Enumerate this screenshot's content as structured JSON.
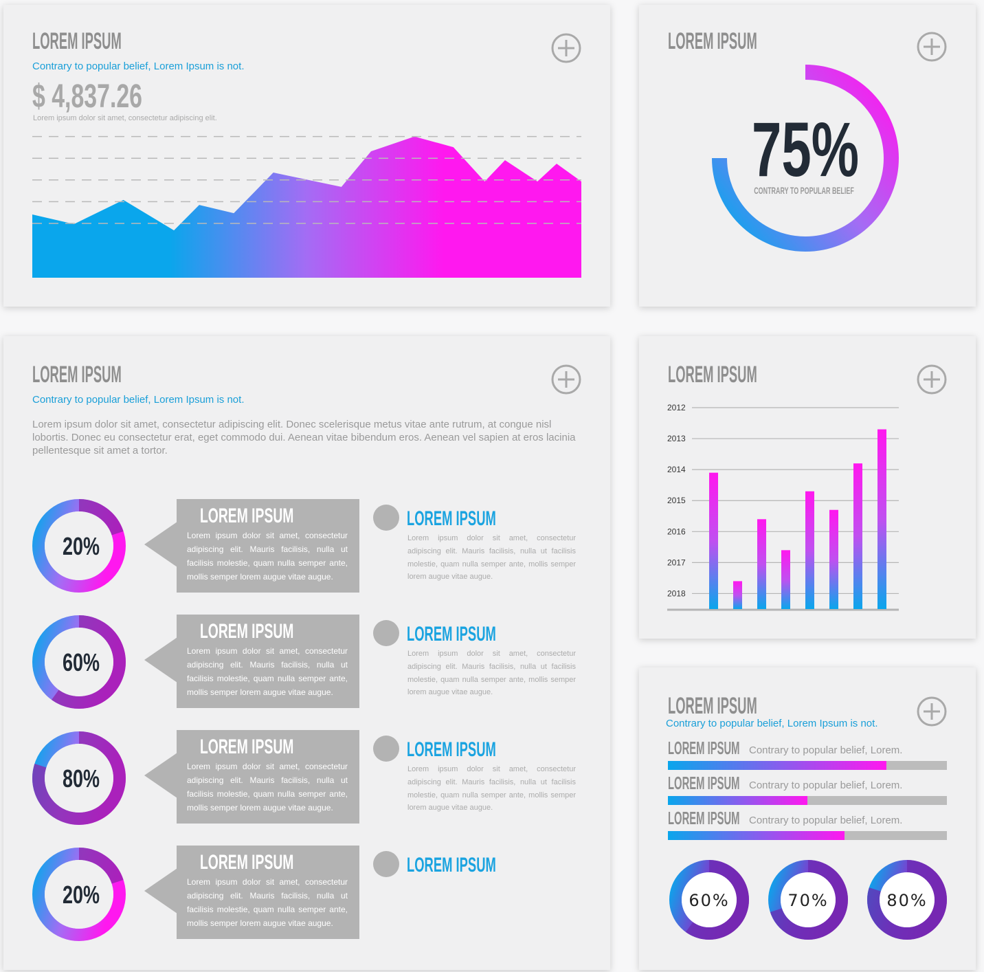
{
  "chart_data": [
    {
      "type": "area",
      "title": "LOREM IPSUM",
      "subtitle": "Contrary to popular belief, Lorem Ipsum is not.",
      "headline": "$ 4,837.26",
      "note": "Lorem ipsum dolor sit amet, consectetur adipiscing elit.",
      "x": [
        0,
        7.6,
        16.6,
        25.8,
        30.4,
        36.7,
        43.9,
        56.3,
        61.7,
        69.6,
        76.7,
        82.4,
        86.1,
        92,
        95.5,
        100
      ],
      "values": [
        29.1,
        24.7,
        35.8,
        21.8,
        33.5,
        29.7,
        48.4,
        41.8,
        58.2,
        65,
        60.1,
        44.3,
        54.1,
        44.3,
        52.5,
        44.3
      ],
      "xlim": [
        0,
        100
      ],
      "ylim": [
        0,
        65
      ],
      "yticks": [
        25,
        35,
        45,
        55,
        65
      ],
      "grid": true,
      "gradient": [
        "#0aa6ec",
        "#0aa6ec",
        "#a46cf4",
        "#ff18ef",
        "#ff18ef"
      ]
    },
    {
      "type": "gauge",
      "title": "LOREM IPSUM",
      "value": 75,
      "value_label": "75%",
      "label": "CONTRARY TO POPULAR BELIEF",
      "range": [
        0,
        100
      ],
      "gradient": [
        "#0aa6ec",
        "#a46cf4",
        "#ff18ef"
      ]
    },
    {
      "type": "bar",
      "title": "LOREM IPSUM",
      "categories": [
        null,
        null,
        null,
        null,
        null,
        null,
        null,
        null
      ],
      "values": [
        2014.1,
        2017.6,
        2015.6,
        2016.6,
        2014.7,
        2015.3,
        2013.8,
        2012.7
      ],
      "ylim": [
        2018.5,
        2012
      ],
      "yticks": [
        2012,
        2013,
        2014,
        2015,
        2016,
        2017,
        2018
      ],
      "grid": true,
      "gradient": [
        "#0aa6ec",
        "#c050f0",
        "#ff18ef"
      ]
    },
    {
      "type": "progress",
      "title": "LOREM IPSUM",
      "subtitle": "Contrary to popular belief, Lorem Ipsum is not.",
      "categories": [
        "LOREM IPSUM",
        "LOREM IPSUM",
        "LOREM IPSUM"
      ],
      "labels": [
        "Contrary to popular belief, Lorem.",
        "Contrary to popular belief, Lorem.",
        "Contrary to popular belief, Lorem."
      ],
      "values": [
        78.3,
        50,
        63.3
      ],
      "xlim": [
        0,
        100
      ],
      "gradient": [
        "#0aa6ec",
        "#ff18ef"
      ],
      "track_color": "#bcbcbc"
    },
    {
      "type": "donut",
      "values": [
        60,
        70,
        80
      ],
      "value_labels": [
        "60%",
        "70%",
        "80%"
      ],
      "range": [
        0,
        100
      ],
      "gradient": [
        "#0aa6ec",
        "#7a3fd0",
        "#9c1fb8"
      ],
      "value_color": "#6a2bb0"
    },
    {
      "type": "donut",
      "title": "LOREM IPSUM",
      "subtitle": "Contrary to popular belief, Lorem Ipsum is not.",
      "description": "Lorem ipsum dolor sit amet, consectetur adipiscing elit. Donec scelerisque metus vitae ante rutrum, at congue nisl lobortis. Donec eu consectetur erat, eget commodo dui. Aenean vitae bibendum eros. Aenean vel sapien at eros lacinia pellentesque sit amet a tortor.",
      "values": [
        20,
        60,
        80,
        20
      ],
      "value_labels": [
        "20%",
        "60%",
        "80%",
        "20%"
      ],
      "range": [
        0,
        100
      ],
      "gradient": [
        "#0aa6ec",
        "#a46cf4",
        "#ff18ef"
      ],
      "value_color": "#8e24aa",
      "items": [
        {
          "box_title": "LOREM IPSUM",
          "box_text": "Lorem ipsum dolor sit amet, consectetur adipiscing elit. Mauris facilisis, nulla ut facilisis molestie, quam nulla semper ante, mollis semper lorem augue vitae augue.",
          "side_title": "LOREM IPSUM",
          "side_text": "Lorem ipsum dolor sit amet, consectetur adipiscing elit. Mauris facilisis, nulla ut facilisis molestie, quam nulla semper ante, mollis semper lorem augue vitae augue."
        },
        {
          "box_title": "LOREM IPSUM",
          "box_text": "Lorem ipsum dolor sit amet, consectetur adipiscing elit. Mauris facilisis, nulla ut facilisis molestie, quam nulla semper ante, mollis semper lorem augue vitae augue.",
          "side_title": "LOREM IPSUM",
          "side_text": "Lorem ipsum dolor sit amet, consectetur adipiscing elit. Mauris facilisis, nulla ut facilisis molestie, quam nulla semper ante, mollis semper lorem augue vitae augue."
        },
        {
          "box_title": "LOREM IPSUM",
          "box_text": "Lorem ipsum dolor sit amet, consectetur adipiscing elit. Mauris facilisis, nulla ut facilisis molestie, quam nulla semper ante, mollis semper lorem augue vitae augue.",
          "side_title": "LOREM IPSUM",
          "side_text": "Lorem ipsum dolor sit amet, consectetur adipiscing elit. Mauris facilisis, nulla ut facilisis molestie, quam nulla semper ante, mollis semper lorem augue vitae augue."
        },
        {
          "box_title": "LOREM IPSUM",
          "box_text": "Lorem ipsum dolor sit amet, consectetur adipiscing elit. Mauris facilisis, nulla ut facilisis molestie, quam nulla semper ante, mollis semper lorem augue vitae augue.",
          "side_title": "LOREM IPSUM"
        }
      ]
    }
  ]
}
